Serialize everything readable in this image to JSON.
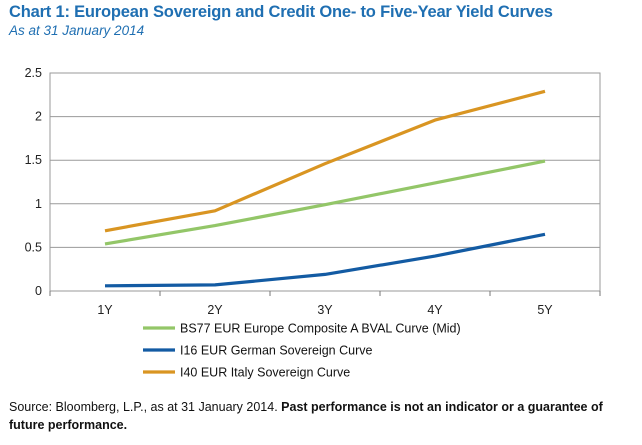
{
  "header": {
    "title": "Chart 1: European Sovereign and Credit One- to Five-Year Yield Curves",
    "subtitle": "As at 31 January 2014"
  },
  "chart_data": {
    "type": "line",
    "title": "Chart 1: European Sovereign and Credit One- to Five-Year Yield Curves",
    "subtitle": "As at 31 January 2014",
    "categories": [
      "1Y",
      "2Y",
      "3Y",
      "4Y",
      "5Y"
    ],
    "ylim": [
      0,
      2.5
    ],
    "yticks": [
      "0",
      "0.5",
      "1",
      "1.5",
      "2",
      "2.5"
    ],
    "grid": true,
    "legend_position": "bottom",
    "series": [
      {
        "name": "BS77 EUR Europe Composite A BVAL Curve (Mid)",
        "color": "#93c668",
        "values": [
          0.54,
          0.75,
          0.99,
          1.24,
          1.49
        ]
      },
      {
        "name": "I16 EUR German Sovereign Curve",
        "color": "#135ba3",
        "values": [
          0.06,
          0.07,
          0.19,
          0.4,
          0.65
        ]
      },
      {
        "name": "I40 EUR Italy Sovereign Curve",
        "color": "#d99522",
        "values": [
          0.69,
          0.92,
          1.46,
          1.96,
          2.29
        ]
      }
    ]
  },
  "footer": {
    "source": "Source: Bloomberg, L.P., as at 31 January 2014. ",
    "disclaimer": "Past performance is not an indicator or a guarantee of future performance."
  }
}
